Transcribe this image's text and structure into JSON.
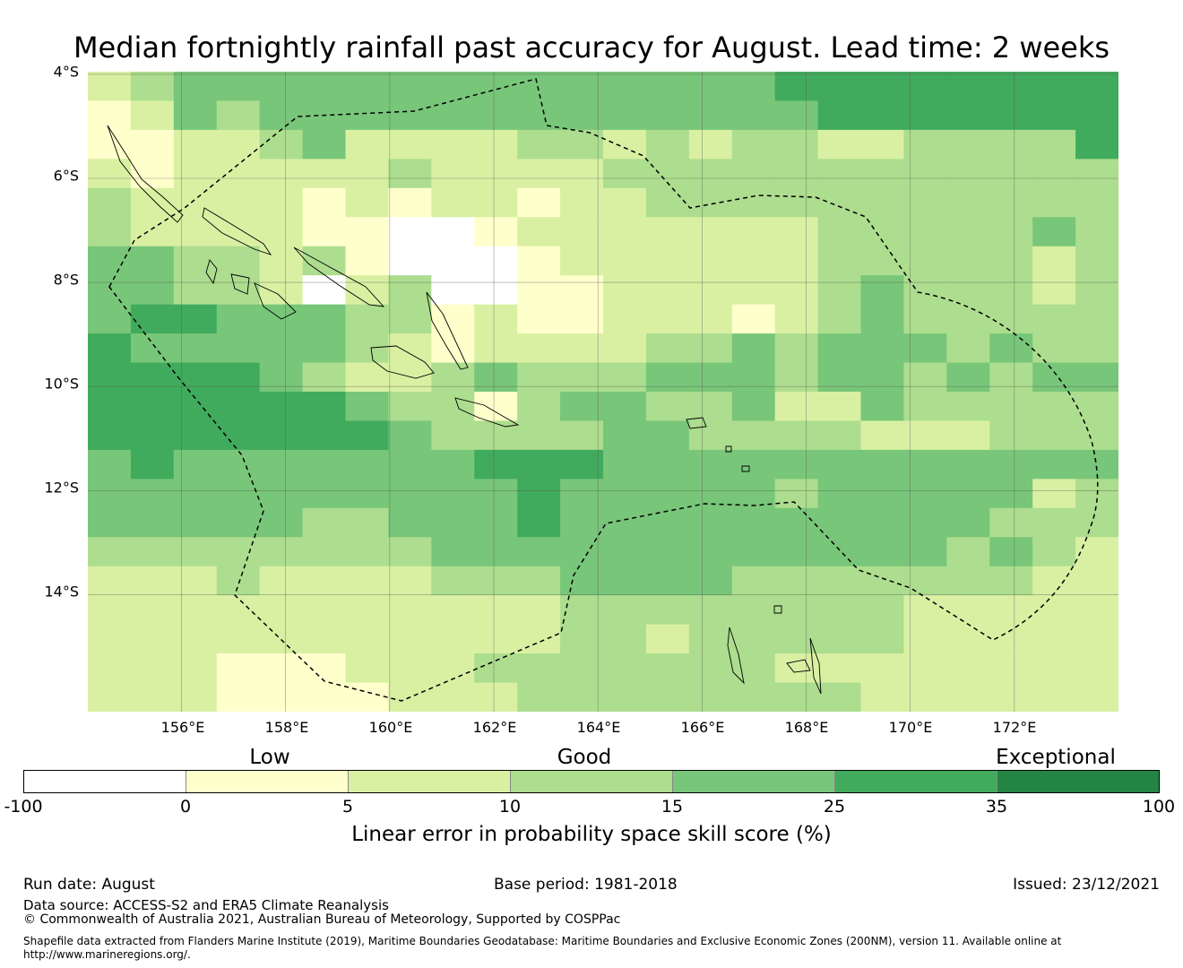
{
  "title": "Median fortnightly rainfall past accuracy for August. Lead time: 2 weeks",
  "map": {
    "lat_ticks": [
      "4°S",
      "6°S",
      "8°S",
      "10°S",
      "12°S",
      "14°S"
    ],
    "lon_ticks": [
      "156°E",
      "158°E",
      "160°E",
      "162°E",
      "164°E",
      "166°E",
      "168°E",
      "170°E",
      "172°E"
    ],
    "lat_values": [
      -4,
      -6,
      -8,
      -10,
      -12,
      -14
    ],
    "lon_values": [
      156,
      158,
      160,
      162,
      164,
      166,
      168,
      170,
      172
    ],
    "extent": {
      "lon_min": 154.2,
      "lon_max": 174,
      "lat_min": -16.25,
      "lat_max": -3.95
    },
    "boundary": "Solomon Islands EEZ (dashed)",
    "grid": true
  },
  "categories": {
    "low": "Low",
    "good": "Good",
    "exceptional": "Exceptional"
  },
  "colorbar": {
    "ticks": [
      "-100",
      "0",
      "5",
      "10",
      "15",
      "25",
      "35",
      "100"
    ],
    "colors": [
      "#ffffff",
      "#ffffcc",
      "#d9f0a3",
      "#addd8e",
      "#78c679",
      "#41ab5d",
      "#238443"
    ],
    "label": "Linear error in probability space skill score (%)"
  },
  "chart_data": {
    "type": "heatmap",
    "title": "Median fortnightly rainfall past accuracy for August. Lead time: 2 weeks",
    "bins": [
      -100,
      0,
      5,
      10,
      15,
      25,
      35,
      100
    ],
    "x_units": "°E",
    "y_units": "°S",
    "cell_degrees": 0.833,
    "rows_note": "rows from north (4°S) to south; values are colour-bin index (0=-100..0, 1=0..5, 2=5..10, 3=10..15, 4=15..25, 5=25..35, 6=35..100)",
    "grid": [
      [
        2,
        3,
        4,
        4,
        4,
        4,
        4,
        4,
        4,
        4,
        4,
        4,
        4,
        4,
        4,
        4,
        5,
        5,
        5,
        5,
        5,
        5,
        5,
        5
      ],
      [
        1,
        2,
        4,
        3,
        4,
        4,
        4,
        4,
        4,
        4,
        4,
        4,
        4,
        4,
        4,
        4,
        4,
        5,
        5,
        5,
        5,
        5,
        5,
        5
      ],
      [
        1,
        1,
        2,
        2,
        3,
        4,
        2,
        2,
        2,
        2,
        3,
        3,
        2,
        3,
        2,
        3,
        3,
        2,
        2,
        3,
        3,
        3,
        3,
        5
      ],
      [
        2,
        1,
        2,
        2,
        2,
        2,
        2,
        3,
        2,
        2,
        2,
        2,
        3,
        3,
        3,
        3,
        3,
        3,
        3,
        3,
        3,
        3,
        3,
        3
      ],
      [
        3,
        2,
        2,
        2,
        2,
        1,
        2,
        1,
        2,
        2,
        1,
        2,
        2,
        3,
        3,
        3,
        3,
        3,
        3,
        3,
        3,
        3,
        3,
        3
      ],
      [
        3,
        2,
        2,
        2,
        2,
        1,
        1,
        0,
        0,
        1,
        2,
        2,
        2,
        2,
        2,
        2,
        2,
        3,
        3,
        3,
        3,
        3,
        4,
        3
      ],
      [
        4,
        4,
        3,
        3,
        2,
        3,
        1,
        0,
        0,
        0,
        1,
        2,
        2,
        2,
        2,
        2,
        2,
        3,
        3,
        3,
        3,
        3,
        2,
        3
      ],
      [
        4,
        4,
        3,
        3,
        2,
        0,
        2,
        3,
        0,
        0,
        1,
        1,
        2,
        2,
        2,
        2,
        2,
        3,
        4,
        3,
        3,
        3,
        2,
        3
      ],
      [
        4,
        5,
        5,
        4,
        4,
        4,
        3,
        3,
        1,
        2,
        1,
        1,
        2,
        2,
        2,
        1,
        2,
        3,
        4,
        3,
        3,
        3,
        3,
        3
      ],
      [
        5,
        4,
        4,
        4,
        4,
        4,
        3,
        2,
        1,
        2,
        2,
        2,
        2,
        3,
        3,
        4,
        3,
        4,
        4,
        4,
        3,
        4,
        3,
        3
      ],
      [
        5,
        5,
        5,
        5,
        4,
        3,
        2,
        2,
        3,
        4,
        3,
        3,
        3,
        4,
        4,
        4,
        3,
        4,
        4,
        3,
        4,
        3,
        4,
        4
      ],
      [
        5,
        5,
        5,
        5,
        5,
        5,
        4,
        3,
        3,
        1,
        3,
        4,
        4,
        3,
        3,
        4,
        2,
        2,
        4,
        3,
        3,
        3,
        3,
        3
      ],
      [
        5,
        5,
        5,
        5,
        5,
        5,
        5,
        4,
        3,
        3,
        3,
        3,
        4,
        4,
        3,
        3,
        3,
        3,
        2,
        2,
        2,
        3,
        3,
        3
      ],
      [
        4,
        5,
        4,
        4,
        4,
        4,
        4,
        4,
        4,
        5,
        5,
        5,
        4,
        4,
        4,
        4,
        4,
        4,
        4,
        4,
        4,
        4,
        4,
        4
      ],
      [
        4,
        4,
        4,
        4,
        4,
        4,
        4,
        4,
        4,
        4,
        5,
        4,
        4,
        4,
        4,
        4,
        3,
        4,
        4,
        4,
        4,
        4,
        2,
        3
      ],
      [
        4,
        4,
        4,
        4,
        4,
        3,
        3,
        4,
        4,
        4,
        5,
        4,
        4,
        4,
        4,
        4,
        4,
        4,
        4,
        4,
        4,
        3,
        3,
        3
      ],
      [
        3,
        3,
        3,
        3,
        3,
        3,
        3,
        3,
        4,
        4,
        4,
        4,
        4,
        4,
        4,
        4,
        4,
        4,
        4,
        4,
        3,
        4,
        3,
        2
      ],
      [
        2,
        2,
        2,
        3,
        2,
        2,
        2,
        2,
        3,
        3,
        3,
        4,
        4,
        4,
        4,
        3,
        3,
        3,
        3,
        3,
        3,
        3,
        2,
        2
      ],
      [
        2,
        2,
        2,
        2,
        2,
        2,
        2,
        2,
        2,
        2,
        2,
        3,
        3,
        3,
        3,
        3,
        3,
        3,
        3,
        2,
        2,
        2,
        2,
        2
      ],
      [
        2,
        2,
        2,
        2,
        2,
        2,
        2,
        2,
        2,
        2,
        2,
        3,
        3,
        2,
        3,
        3,
        3,
        3,
        3,
        2,
        2,
        2,
        2,
        2
      ],
      [
        2,
        2,
        2,
        1,
        1,
        1,
        2,
        2,
        2,
        3,
        3,
        3,
        3,
        3,
        3,
        3,
        2,
        2,
        2,
        2,
        2,
        2,
        2,
        2
      ],
      [
        2,
        2,
        2,
        1,
        1,
        1,
        1,
        2,
        2,
        2,
        3,
        3,
        3,
        3,
        3,
        3,
        3,
        3,
        2,
        2,
        2,
        2,
        2,
        2
      ]
    ]
  },
  "footer": {
    "run_date": "Run date: August",
    "base_period": "Base period: 1981-2018",
    "issued": "Issued: 23/12/2021",
    "data_source": "Data source: ACCESS-S2 and ERA5 Climate Reanalysis",
    "copyright": "© Commonwealth of Australia 2021, Australian Bureau of Meteorology, Supported by COSPPac",
    "shapefile_1": "Shapefile data extracted from Flanders Marine Institute (2019), Maritime Boundaries Geodatabase: Maritime Boundaries and Exclusive Economic Zones (200NM), version 11. Available online at",
    "shapefile_2": "http://www.marineregions.org/."
  }
}
